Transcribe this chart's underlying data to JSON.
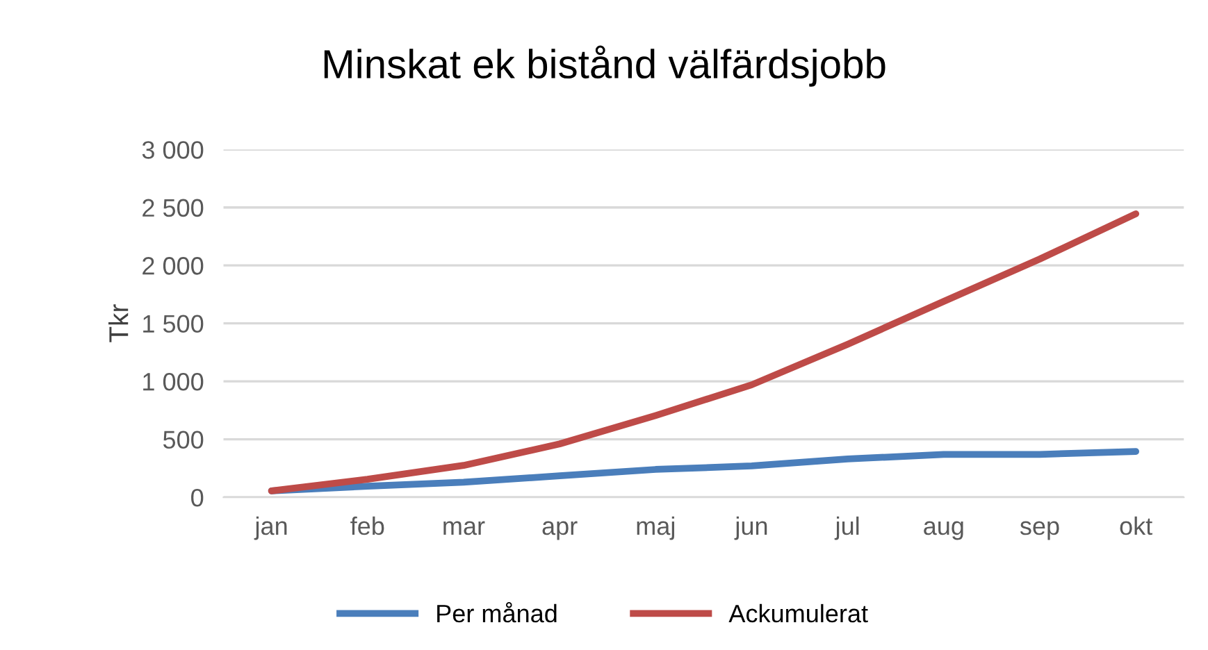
{
  "chart_data": {
    "type": "line",
    "title": "Minskat ek bistånd välfärdsjobb",
    "ylabel": "Tkr",
    "categories": [
      "jan",
      "feb",
      "mar",
      "apr",
      "maj",
      "jun",
      "jul",
      "aug",
      "sep",
      "okt"
    ],
    "series": [
      {
        "name": "Per månad",
        "color": "#4a7ebb",
        "values": [
          55,
          95,
          130,
          185,
          240,
          270,
          330,
          370,
          370,
          395
        ]
      },
      {
        "name": "Ackumulerat",
        "color": "#be4b48",
        "values": [
          55,
          155,
          275,
          460,
          705,
          970,
          1320,
          1690,
          2055,
          2445
        ]
      }
    ],
    "ylim": [
      0,
      3000
    ],
    "yticks": [
      {
        "value": 0,
        "label": "0"
      },
      {
        "value": 500,
        "label": "500"
      },
      {
        "value": 1000,
        "label": "1 000"
      },
      {
        "value": 1500,
        "label": "1 500"
      },
      {
        "value": 2000,
        "label": "2 000"
      },
      {
        "value": 2500,
        "label": "2 500"
      },
      {
        "value": 3000,
        "label": "3 000"
      }
    ],
    "grid": "y",
    "legend": "bottom",
    "marker": "none",
    "line_style": "solid"
  }
}
